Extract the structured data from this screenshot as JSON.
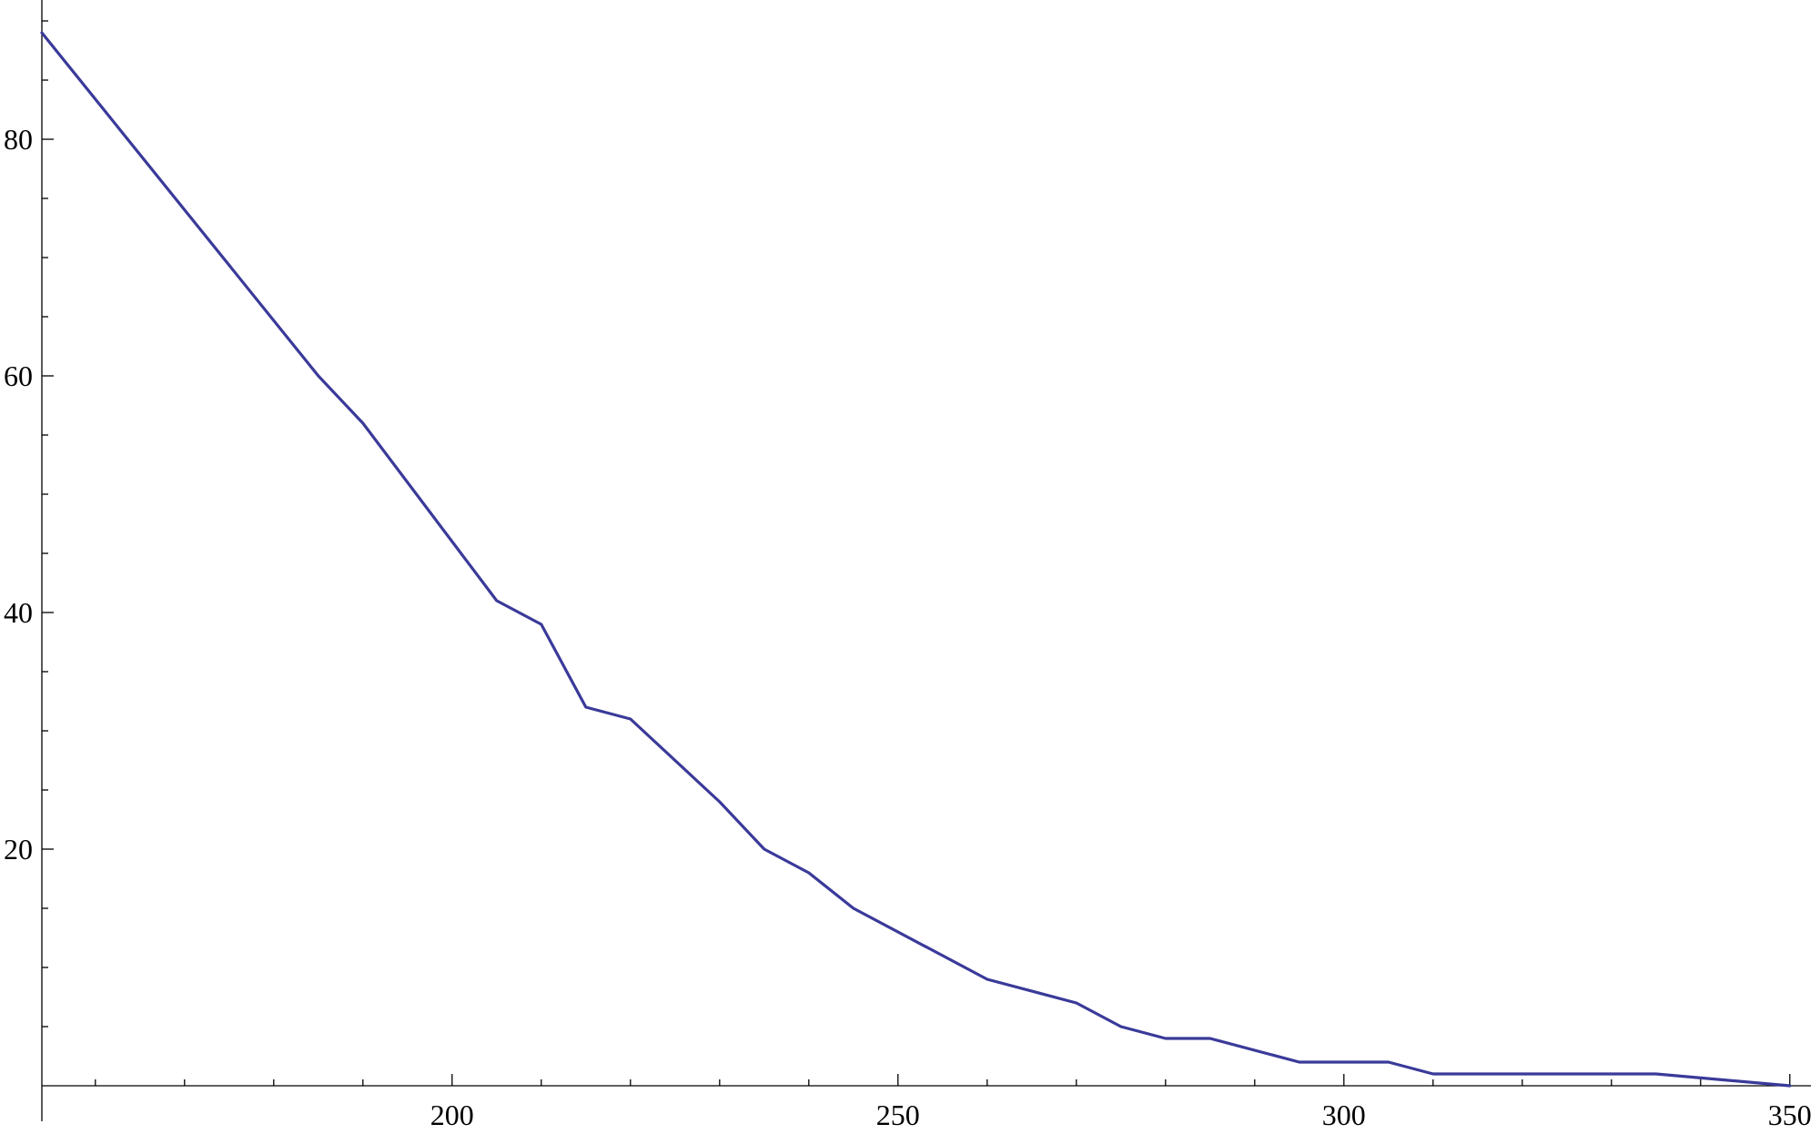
{
  "chart_data": {
    "type": "line",
    "title": "",
    "xlabel": "",
    "ylabel": "",
    "xlim": [
      154,
      352
    ],
    "ylim": [
      -3,
      91
    ],
    "x_ticks": [
      200,
      250,
      300,
      350
    ],
    "y_ticks": [
      20,
      40,
      60,
      80
    ],
    "x_tick_labels": [
      "200",
      "250",
      "300",
      "350"
    ],
    "y_tick_labels": [
      "20",
      "40",
      "60",
      "80"
    ],
    "grid": false,
    "legend": "none",
    "series": [
      {
        "color": "#3a3a9a",
        "x": [
          154,
          185,
          190,
          205,
          210,
          215,
          220,
          230,
          235,
          240,
          245,
          260,
          270,
          275,
          280,
          285,
          295,
          305,
          310,
          335,
          350
        ],
        "y": [
          89,
          60,
          56,
          41,
          39,
          32,
          31,
          24,
          20,
          18,
          15,
          9,
          7,
          5,
          4,
          4,
          2,
          2,
          1,
          1,
          0
        ]
      }
    ]
  }
}
